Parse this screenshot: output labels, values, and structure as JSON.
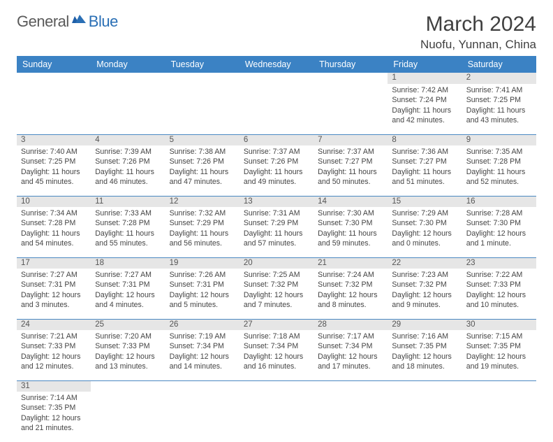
{
  "logo": {
    "general": "General",
    "blue": "Blue"
  },
  "title": "March 2024",
  "location": "Nuofu, Yunnan, China",
  "colors": {
    "header_bg": "#3b82c4",
    "header_text": "#ffffff",
    "daynum_bg": "#e6e6e6",
    "row_divider": "#4a88c2",
    "text": "#444444",
    "logo_general": "#5a5a5a",
    "logo_blue": "#2a6fb5"
  },
  "weekdays": [
    "Sunday",
    "Monday",
    "Tuesday",
    "Wednesday",
    "Thursday",
    "Friday",
    "Saturday"
  ],
  "weeks": [
    [
      null,
      null,
      null,
      null,
      null,
      {
        "n": "1",
        "sunrise": "Sunrise: 7:42 AM",
        "sunset": "Sunset: 7:24 PM",
        "daylight": "Daylight: 11 hours and 42 minutes."
      },
      {
        "n": "2",
        "sunrise": "Sunrise: 7:41 AM",
        "sunset": "Sunset: 7:25 PM",
        "daylight": "Daylight: 11 hours and 43 minutes."
      }
    ],
    [
      {
        "n": "3",
        "sunrise": "Sunrise: 7:40 AM",
        "sunset": "Sunset: 7:25 PM",
        "daylight": "Daylight: 11 hours and 45 minutes."
      },
      {
        "n": "4",
        "sunrise": "Sunrise: 7:39 AM",
        "sunset": "Sunset: 7:26 PM",
        "daylight": "Daylight: 11 hours and 46 minutes."
      },
      {
        "n": "5",
        "sunrise": "Sunrise: 7:38 AM",
        "sunset": "Sunset: 7:26 PM",
        "daylight": "Daylight: 11 hours and 47 minutes."
      },
      {
        "n": "6",
        "sunrise": "Sunrise: 7:37 AM",
        "sunset": "Sunset: 7:26 PM",
        "daylight": "Daylight: 11 hours and 49 minutes."
      },
      {
        "n": "7",
        "sunrise": "Sunrise: 7:37 AM",
        "sunset": "Sunset: 7:27 PM",
        "daylight": "Daylight: 11 hours and 50 minutes."
      },
      {
        "n": "8",
        "sunrise": "Sunrise: 7:36 AM",
        "sunset": "Sunset: 7:27 PM",
        "daylight": "Daylight: 11 hours and 51 minutes."
      },
      {
        "n": "9",
        "sunrise": "Sunrise: 7:35 AM",
        "sunset": "Sunset: 7:28 PM",
        "daylight": "Daylight: 11 hours and 52 minutes."
      }
    ],
    [
      {
        "n": "10",
        "sunrise": "Sunrise: 7:34 AM",
        "sunset": "Sunset: 7:28 PM",
        "daylight": "Daylight: 11 hours and 54 minutes."
      },
      {
        "n": "11",
        "sunrise": "Sunrise: 7:33 AM",
        "sunset": "Sunset: 7:28 PM",
        "daylight": "Daylight: 11 hours and 55 minutes."
      },
      {
        "n": "12",
        "sunrise": "Sunrise: 7:32 AM",
        "sunset": "Sunset: 7:29 PM",
        "daylight": "Daylight: 11 hours and 56 minutes."
      },
      {
        "n": "13",
        "sunrise": "Sunrise: 7:31 AM",
        "sunset": "Sunset: 7:29 PM",
        "daylight": "Daylight: 11 hours and 57 minutes."
      },
      {
        "n": "14",
        "sunrise": "Sunrise: 7:30 AM",
        "sunset": "Sunset: 7:30 PM",
        "daylight": "Daylight: 11 hours and 59 minutes."
      },
      {
        "n": "15",
        "sunrise": "Sunrise: 7:29 AM",
        "sunset": "Sunset: 7:30 PM",
        "daylight": "Daylight: 12 hours and 0 minutes."
      },
      {
        "n": "16",
        "sunrise": "Sunrise: 7:28 AM",
        "sunset": "Sunset: 7:30 PM",
        "daylight": "Daylight: 12 hours and 1 minute."
      }
    ],
    [
      {
        "n": "17",
        "sunrise": "Sunrise: 7:27 AM",
        "sunset": "Sunset: 7:31 PM",
        "daylight": "Daylight: 12 hours and 3 minutes."
      },
      {
        "n": "18",
        "sunrise": "Sunrise: 7:27 AM",
        "sunset": "Sunset: 7:31 PM",
        "daylight": "Daylight: 12 hours and 4 minutes."
      },
      {
        "n": "19",
        "sunrise": "Sunrise: 7:26 AM",
        "sunset": "Sunset: 7:31 PM",
        "daylight": "Daylight: 12 hours and 5 minutes."
      },
      {
        "n": "20",
        "sunrise": "Sunrise: 7:25 AM",
        "sunset": "Sunset: 7:32 PM",
        "daylight": "Daylight: 12 hours and 7 minutes."
      },
      {
        "n": "21",
        "sunrise": "Sunrise: 7:24 AM",
        "sunset": "Sunset: 7:32 PM",
        "daylight": "Daylight: 12 hours and 8 minutes."
      },
      {
        "n": "22",
        "sunrise": "Sunrise: 7:23 AM",
        "sunset": "Sunset: 7:32 PM",
        "daylight": "Daylight: 12 hours and 9 minutes."
      },
      {
        "n": "23",
        "sunrise": "Sunrise: 7:22 AM",
        "sunset": "Sunset: 7:33 PM",
        "daylight": "Daylight: 12 hours and 10 minutes."
      }
    ],
    [
      {
        "n": "24",
        "sunrise": "Sunrise: 7:21 AM",
        "sunset": "Sunset: 7:33 PM",
        "daylight": "Daylight: 12 hours and 12 minutes."
      },
      {
        "n": "25",
        "sunrise": "Sunrise: 7:20 AM",
        "sunset": "Sunset: 7:33 PM",
        "daylight": "Daylight: 12 hours and 13 minutes."
      },
      {
        "n": "26",
        "sunrise": "Sunrise: 7:19 AM",
        "sunset": "Sunset: 7:34 PM",
        "daylight": "Daylight: 12 hours and 14 minutes."
      },
      {
        "n": "27",
        "sunrise": "Sunrise: 7:18 AM",
        "sunset": "Sunset: 7:34 PM",
        "daylight": "Daylight: 12 hours and 16 minutes."
      },
      {
        "n": "28",
        "sunrise": "Sunrise: 7:17 AM",
        "sunset": "Sunset: 7:34 PM",
        "daylight": "Daylight: 12 hours and 17 minutes."
      },
      {
        "n": "29",
        "sunrise": "Sunrise: 7:16 AM",
        "sunset": "Sunset: 7:35 PM",
        "daylight": "Daylight: 12 hours and 18 minutes."
      },
      {
        "n": "30",
        "sunrise": "Sunrise: 7:15 AM",
        "sunset": "Sunset: 7:35 PM",
        "daylight": "Daylight: 12 hours and 19 minutes."
      }
    ],
    [
      {
        "n": "31",
        "sunrise": "Sunrise: 7:14 AM",
        "sunset": "Sunset: 7:35 PM",
        "daylight": "Daylight: 12 hours and 21 minutes."
      },
      null,
      null,
      null,
      null,
      null,
      null
    ]
  ]
}
